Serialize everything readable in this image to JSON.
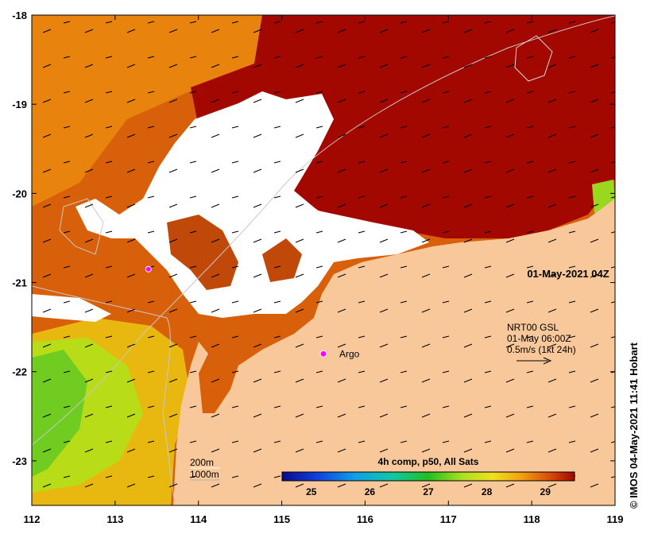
{
  "map": {
    "lon_range": [
      112,
      119
    ],
    "lat_range": [
      -23.5,
      -18
    ],
    "x_ticks": [
      {
        "value": 112,
        "label": "112"
      },
      {
        "value": 113,
        "label": "113"
      },
      {
        "value": 114,
        "label": "114"
      },
      {
        "value": 115,
        "label": "115"
      },
      {
        "value": 116,
        "label": "116"
      },
      {
        "value": 117,
        "label": "117"
      },
      {
        "value": 118,
        "label": "118"
      },
      {
        "value": 119,
        "label": "119"
      }
    ],
    "y_ticks": [
      {
        "value": -18,
        "label": "-18"
      },
      {
        "value": -19,
        "label": "-19"
      },
      {
        "value": -20,
        "label": "-20"
      },
      {
        "value": -21,
        "label": "-21"
      },
      {
        "value": -22,
        "label": "-22"
      },
      {
        "value": -23,
        "label": "-23"
      }
    ],
    "timestamp": "01-May-2021 04Z",
    "argo_label": "Argo",
    "argo_position": {
      "lon": 115.5,
      "lat": -21.8
    },
    "marker_position": {
      "lon": 113.4,
      "lat": -20.85
    },
    "current_legend": {
      "line1": "NRT00 GSL",
      "line2": "01-May 06:00Z",
      "line3": "0.5m/s (1kt 24h)"
    },
    "depth_legend": {
      "line1": "200m",
      "line2": "1000m"
    },
    "colorbar": {
      "title": "4h comp, p50, All Sats",
      "range": [
        24.5,
        29.5
      ],
      "ticks": [
        "25",
        "26",
        "27",
        "28",
        "29"
      ]
    },
    "credit": "© IMOS 04-May-2021 11:41 Hobart",
    "colors": {
      "land": "#f8c89a",
      "hot": "#a20800",
      "warm": "#d85808",
      "orange": "#e88a10",
      "yellow": "#e8d820",
      "green": "#9ad820",
      "cloud": "#ffffff",
      "marker": "#ff00ff"
    }
  }
}
